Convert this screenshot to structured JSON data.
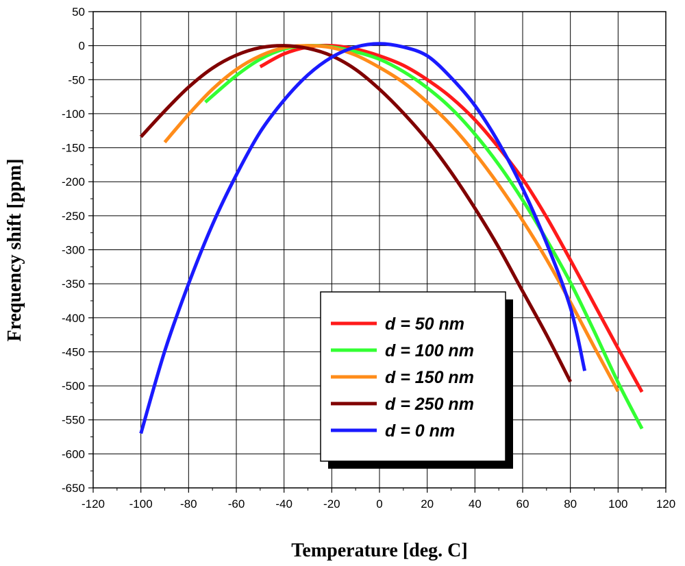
{
  "chart_data": {
    "type": "line",
    "title": "",
    "xlabel": "Temperature [deg. C]",
    "ylabel": "Frequency shift [ppm]",
    "xlim": [
      -120,
      120
    ],
    "ylim": [
      -650,
      50
    ],
    "xticks": [
      -120,
      -100,
      -80,
      -60,
      -40,
      -20,
      0,
      20,
      40,
      60,
      80,
      100,
      120
    ],
    "yticks": [
      50,
      0,
      -50,
      -100,
      -150,
      -200,
      -250,
      -300,
      -350,
      -400,
      -450,
      -500,
      -550,
      -600,
      -650
    ],
    "grid": true,
    "legend_position": "lower-center",
    "series": [
      {
        "name": "d = 50 nm",
        "color": "#ff1a1a",
        "x": [
          -50,
          -40,
          -30,
          -20,
          -10,
          0,
          10,
          20,
          30,
          40,
          50,
          60,
          70,
          80,
          90,
          100,
          110
        ],
        "y": [
          -31,
          -12,
          -2,
          0,
          -5,
          -15,
          -29,
          -50,
          -76,
          -109,
          -150,
          -196,
          -252,
          -315,
          -380,
          -445,
          -509
        ]
      },
      {
        "name": "d = 100 nm",
        "color": "#33ff33",
        "x": [
          -73,
          -60,
          -50,
          -40,
          -30,
          -20,
          -10,
          0,
          10,
          20,
          30,
          40,
          50,
          60,
          70,
          80,
          90,
          100,
          110
        ],
        "y": [
          -83,
          -44,
          -20,
          -5,
          0,
          -2,
          -9,
          -20,
          -38,
          -62,
          -92,
          -130,
          -175,
          -227,
          -285,
          -348,
          -420,
          -495,
          -563
        ]
      },
      {
        "name": "d = 150 nm",
        "color": "#ff8c1a",
        "x": [
          -90,
          -80,
          -70,
          -60,
          -50,
          -40,
          -30,
          -20,
          -10,
          0,
          10,
          20,
          30,
          40,
          50,
          60,
          70,
          80,
          90,
          100
        ],
        "y": [
          -142,
          -101,
          -64,
          -35,
          -15,
          -3,
          0,
          -3,
          -14,
          -32,
          -54,
          -83,
          -117,
          -158,
          -205,
          -257,
          -314,
          -377,
          -443,
          -508
        ]
      },
      {
        "name": "d = 250 nm",
        "color": "#800000",
        "x": [
          -100,
          -90,
          -80,
          -70,
          -60,
          -50,
          -40,
          -30,
          -20,
          -10,
          0,
          10,
          20,
          30,
          40,
          50,
          60,
          70,
          80
        ],
        "y": [
          -134,
          -96,
          -61,
          -33,
          -14,
          -3,
          0,
          -4,
          -15,
          -35,
          -64,
          -99,
          -139,
          -186,
          -239,
          -297,
          -361,
          -425,
          -494
        ]
      },
      {
        "name": "d = 0 nm",
        "color": "#1a1aff",
        "x": [
          -100,
          -90,
          -80,
          -70,
          -60,
          -50,
          -40,
          -30,
          -20,
          -10,
          0,
          10,
          20,
          30,
          40,
          50,
          60,
          70,
          80,
          86
        ],
        "y": [
          -570,
          -449,
          -350,
          -263,
          -190,
          -127,
          -80,
          -43,
          -17,
          -2,
          3,
          -2,
          -15,
          -47,
          -88,
          -143,
          -210,
          -290,
          -385,
          -478
        ]
      }
    ]
  }
}
